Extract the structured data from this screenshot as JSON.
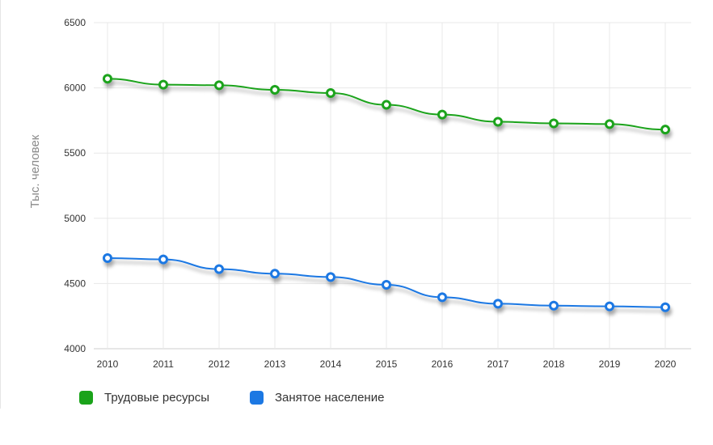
{
  "chart_data": {
    "type": "line",
    "title": "",
    "xlabel": "",
    "ylabel": "Тыс. человек",
    "x": [
      "2010",
      "2011",
      "2012",
      "2013",
      "2014",
      "2015",
      "2016",
      "2017",
      "2018",
      "2019",
      "2020"
    ],
    "ylim": [
      4000,
      6500
    ],
    "yticks": [
      "4000",
      "4500",
      "5000",
      "5500",
      "6000",
      "6500"
    ],
    "grid": true,
    "legend_position": "bottom-left",
    "series": [
      {
        "name": "Трудовые ресурсы",
        "color": "#1aa31a",
        "values": [
          6070,
          6025,
          6020,
          5985,
          5960,
          5870,
          5795,
          5740,
          5728,
          5722,
          5680
        ]
      },
      {
        "name": "Занятое население",
        "color": "#1c78e3",
        "values": [
          4695,
          4685,
          4610,
          4575,
          4550,
          4490,
          4395,
          4345,
          4330,
          4325,
          4318
        ]
      }
    ]
  }
}
